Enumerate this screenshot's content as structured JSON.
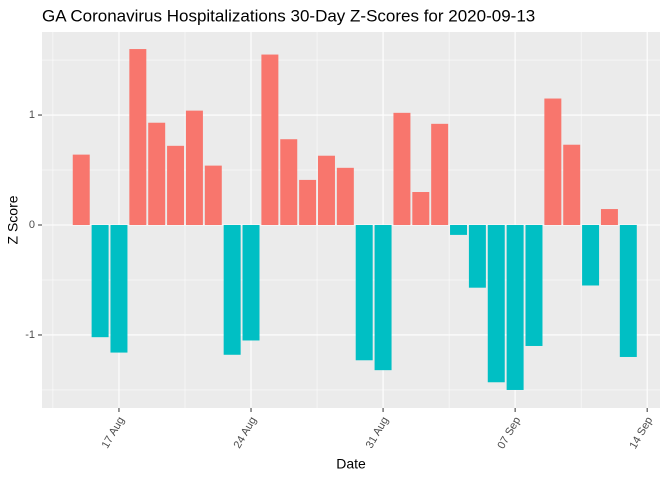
{
  "chart_data": {
    "type": "bar",
    "title": "GA Coronavirus Hospitalizations 30-Day Z-Scores for 2020-09-13",
    "x_label": "Date",
    "y_label": "Z Score",
    "x": [
      0,
      1,
      2,
      3,
      4,
      5,
      6,
      7,
      8,
      9,
      10,
      11,
      12,
      13,
      14,
      15,
      16,
      17,
      18,
      19,
      20,
      21,
      22,
      23,
      24,
      25,
      26,
      27,
      28,
      29
    ],
    "values": [
      0.64,
      -1.02,
      -1.16,
      1.6,
      0.93,
      0.72,
      1.04,
      0.54,
      -1.18,
      -1.05,
      1.55,
      0.78,
      0.41,
      0.63,
      0.52,
      -1.23,
      -1.32,
      1.02,
      0.3,
      0.92,
      -0.09,
      -0.57,
      -1.43,
      -1.5,
      -1.1,
      1.15,
      0.73,
      -0.55,
      0.145,
      -1.2
    ],
    "color_positive": "#F8766D",
    "color_negative": "#00BFC4",
    "xlim": [
      -2.08,
      30.68
    ],
    "xticks": [
      {
        "value": 2,
        "label": "17 Aug"
      },
      {
        "value": 9,
        "label": "24 Aug"
      },
      {
        "value": 16,
        "label": "31 Aug"
      },
      {
        "value": 23,
        "label": "07 Sep"
      },
      {
        "value": 30,
        "label": "14 Sep"
      }
    ],
    "ylim": [
      -1.664,
      1.755
    ],
    "yticks": [
      -1,
      0,
      1
    ],
    "grid": true
  }
}
